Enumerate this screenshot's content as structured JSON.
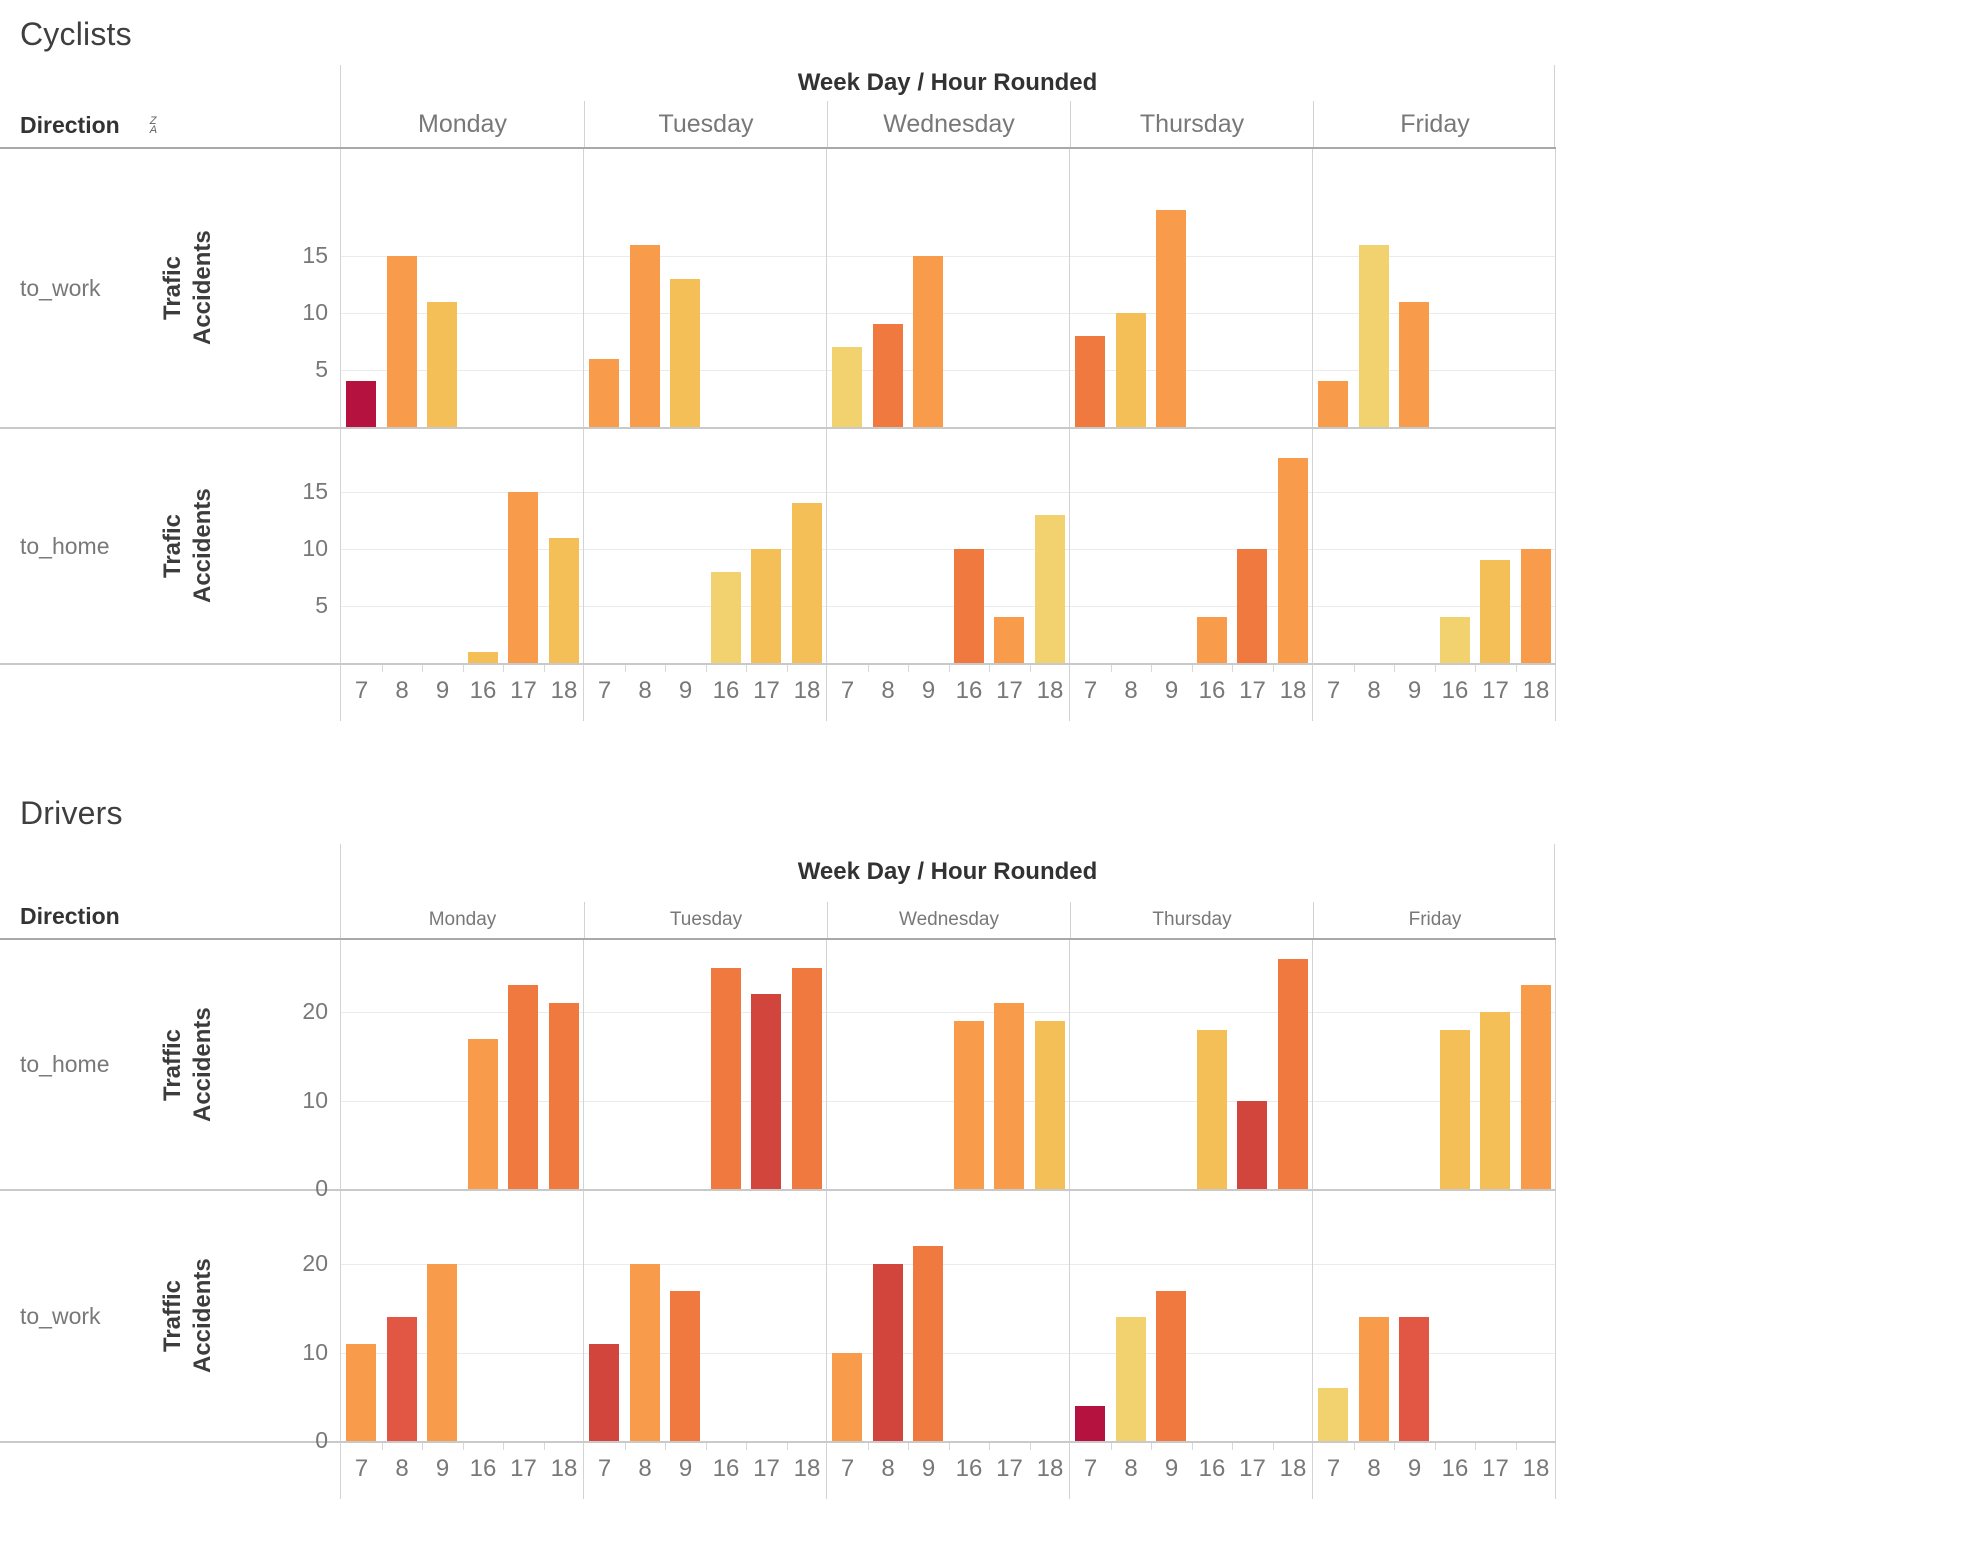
{
  "palette": {
    "crimson": "#b5123f",
    "red": "#d2453c",
    "red_orange": "#e25744",
    "dark_orange": "#f0793f",
    "orange": "#f89c4b",
    "amber": "#f5bf58",
    "yellow": "#f1d26e"
  },
  "chart_data": [
    {
      "type": "bar",
      "title": "Cyclists",
      "direction_label": "Direction",
      "sort_icon": true,
      "column_field_header": "Week Day / Hour Rounded",
      "days": [
        "Monday",
        "Tuesday",
        "Wednesday",
        "Thursday",
        "Friday"
      ],
      "hours": [
        "7",
        "8",
        "9",
        "16",
        "17",
        "18"
      ],
      "y_ticks": [
        5,
        10,
        15
      ],
      "ylim": [
        0,
        24
      ],
      "rows": [
        {
          "direction": "to_work",
          "ylabel": "Trafic Accidents",
          "series": [
            {
              "day": "Monday",
              "bars": [
                {
                  "hour": "7",
                  "value": 4,
                  "color": "crimson"
                },
                {
                  "hour": "8",
                  "value": 15,
                  "color": "orange"
                },
                {
                  "hour": "9",
                  "value": 11,
                  "color": "amber"
                }
              ]
            },
            {
              "day": "Tuesday",
              "bars": [
                {
                  "hour": "7",
                  "value": 6,
                  "color": "orange"
                },
                {
                  "hour": "8",
                  "value": 16,
                  "color": "orange"
                },
                {
                  "hour": "9",
                  "value": 13,
                  "color": "amber"
                }
              ]
            },
            {
              "day": "Wednesday",
              "bars": [
                {
                  "hour": "7",
                  "value": 7,
                  "color": "yellow"
                },
                {
                  "hour": "8",
                  "value": 9,
                  "color": "dark_orange"
                },
                {
                  "hour": "9",
                  "value": 15,
                  "color": "orange"
                }
              ]
            },
            {
              "day": "Thursday",
              "bars": [
                {
                  "hour": "7",
                  "value": 8,
                  "color": "dark_orange"
                },
                {
                  "hour": "8",
                  "value": 10,
                  "color": "amber"
                },
                {
                  "hour": "9",
                  "value": 19,
                  "color": "orange"
                }
              ]
            },
            {
              "day": "Friday",
              "bars": [
                {
                  "hour": "7",
                  "value": 4,
                  "color": "orange"
                },
                {
                  "hour": "8",
                  "value": 16,
                  "color": "yellow"
                },
                {
                  "hour": "9",
                  "value": 11,
                  "color": "orange"
                }
              ]
            }
          ]
        },
        {
          "direction": "to_home",
          "ylabel": "Trafic Accidents",
          "series": [
            {
              "day": "Monday",
              "bars": [
                {
                  "hour": "16",
                  "value": 1,
                  "color": "amber"
                },
                {
                  "hour": "17",
                  "value": 15,
                  "color": "orange"
                },
                {
                  "hour": "18",
                  "value": 11,
                  "color": "amber"
                }
              ]
            },
            {
              "day": "Tuesday",
              "bars": [
                {
                  "hour": "16",
                  "value": 8,
                  "color": "yellow"
                },
                {
                  "hour": "17",
                  "value": 10,
                  "color": "amber"
                },
                {
                  "hour": "18",
                  "value": 14,
                  "color": "amber"
                }
              ]
            },
            {
              "day": "Wednesday",
              "bars": [
                {
                  "hour": "16",
                  "value": 10,
                  "color": "dark_orange"
                },
                {
                  "hour": "17",
                  "value": 4,
                  "color": "orange"
                },
                {
                  "hour": "18",
                  "value": 13,
                  "color": "yellow"
                }
              ]
            },
            {
              "day": "Thursday",
              "bars": [
                {
                  "hour": "16",
                  "value": 4,
                  "color": "orange"
                },
                {
                  "hour": "17",
                  "value": 10,
                  "color": "dark_orange"
                },
                {
                  "hour": "18",
                  "value": 18,
                  "color": "orange"
                }
              ]
            },
            {
              "day": "Friday",
              "bars": [
                {
                  "hour": "16",
                  "value": 4,
                  "color": "yellow"
                },
                {
                  "hour": "17",
                  "value": 9,
                  "color": "amber"
                },
                {
                  "hour": "18",
                  "value": 10,
                  "color": "orange"
                }
              ]
            }
          ]
        }
      ]
    },
    {
      "type": "bar",
      "title": "Drivers",
      "direction_label": "Direction",
      "sort_icon": false,
      "column_field_header": "Week Day / Hour Rounded",
      "days": [
        "Monday",
        "Tuesday",
        "Wednesday",
        "Thursday",
        "Friday"
      ],
      "hours": [
        "7",
        "8",
        "9",
        "16",
        "17",
        "18"
      ],
      "y_ticks": [
        0,
        10,
        20
      ],
      "ylim": [
        0,
        28
      ],
      "rows": [
        {
          "direction": "to_home",
          "ylabel": "Traffic Accidents",
          "series": [
            {
              "day": "Monday",
              "bars": [
                {
                  "hour": "16",
                  "value": 17,
                  "color": "orange"
                },
                {
                  "hour": "17",
                  "value": 23,
                  "color": "dark_orange"
                },
                {
                  "hour": "18",
                  "value": 21,
                  "color": "dark_orange"
                }
              ]
            },
            {
              "day": "Tuesday",
              "bars": [
                {
                  "hour": "16",
                  "value": 25,
                  "color": "dark_orange"
                },
                {
                  "hour": "17",
                  "value": 22,
                  "color": "red"
                },
                {
                  "hour": "18",
                  "value": 25,
                  "color": "dark_orange"
                }
              ]
            },
            {
              "day": "Wednesday",
              "bars": [
                {
                  "hour": "16",
                  "value": 19,
                  "color": "orange"
                },
                {
                  "hour": "17",
                  "value": 21,
                  "color": "orange"
                },
                {
                  "hour": "18",
                  "value": 19,
                  "color": "amber"
                }
              ]
            },
            {
              "day": "Thursday",
              "bars": [
                {
                  "hour": "16",
                  "value": 18,
                  "color": "amber"
                },
                {
                  "hour": "17",
                  "value": 10,
                  "color": "red"
                },
                {
                  "hour": "18",
                  "value": 26,
                  "color": "dark_orange"
                }
              ]
            },
            {
              "day": "Friday",
              "bars": [
                {
                  "hour": "16",
                  "value": 18,
                  "color": "amber"
                },
                {
                  "hour": "17",
                  "value": 20,
                  "color": "amber"
                },
                {
                  "hour": "18",
                  "value": 23,
                  "color": "orange"
                }
              ]
            }
          ]
        },
        {
          "direction": "to_work",
          "ylabel": "Traffic Accidents",
          "series": [
            {
              "day": "Monday",
              "bars": [
                {
                  "hour": "7",
                  "value": 11,
                  "color": "orange"
                },
                {
                  "hour": "8",
                  "value": 14,
                  "color": "red_orange"
                },
                {
                  "hour": "9",
                  "value": 20,
                  "color": "orange"
                }
              ]
            },
            {
              "day": "Tuesday",
              "bars": [
                {
                  "hour": "7",
                  "value": 11,
                  "color": "red"
                },
                {
                  "hour": "8",
                  "value": 20,
                  "color": "orange"
                },
                {
                  "hour": "9",
                  "value": 17,
                  "color": "dark_orange"
                }
              ]
            },
            {
              "day": "Wednesday",
              "bars": [
                {
                  "hour": "7",
                  "value": 10,
                  "color": "orange"
                },
                {
                  "hour": "8",
                  "value": 20,
                  "color": "red"
                },
                {
                  "hour": "9",
                  "value": 22,
                  "color": "dark_orange"
                }
              ]
            },
            {
              "day": "Thursday",
              "bars": [
                {
                  "hour": "7",
                  "value": 4,
                  "color": "crimson"
                },
                {
                  "hour": "8",
                  "value": 14,
                  "color": "yellow"
                },
                {
                  "hour": "9",
                  "value": 17,
                  "color": "dark_orange"
                }
              ]
            },
            {
              "day": "Friday",
              "bars": [
                {
                  "hour": "7",
                  "value": 6,
                  "color": "yellow"
                },
                {
                  "hour": "8",
                  "value": 14,
                  "color": "orange"
                },
                {
                  "hour": "9",
                  "value": 14,
                  "color": "red_orange"
                }
              ]
            }
          ]
        }
      ]
    }
  ]
}
